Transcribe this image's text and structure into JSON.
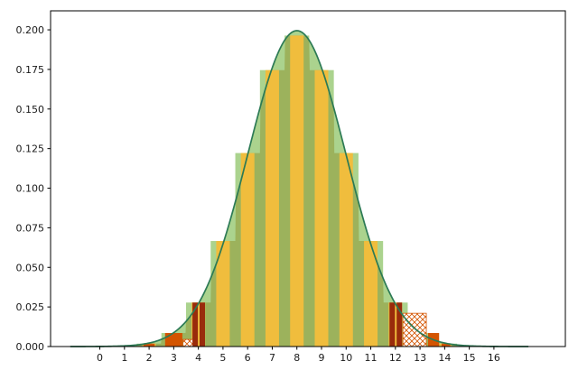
{
  "chart_data": {
    "type": "bar",
    "title": "",
    "xlabel": "",
    "ylabel": "",
    "grid": false,
    "legend": null,
    "xlim": [
      -2.0,
      18.9
    ],
    "ylim": [
      0,
      0.212
    ],
    "x_tick_values": [
      0,
      1,
      2,
      3,
      4,
      5,
      6,
      7,
      8,
      9,
      10,
      11,
      12,
      13,
      14,
      15,
      16
    ],
    "x_tick_labels": [
      "0",
      "1",
      "2",
      "3",
      "4",
      "5",
      "6",
      "7",
      "8",
      "9",
      "10",
      "11",
      "12",
      "13",
      "14",
      "15",
      "16"
    ],
    "y_tick_values": [
      0.0,
      0.025,
      0.05,
      0.075,
      0.1,
      0.125,
      0.15,
      0.175,
      0.2
    ],
    "y_tick_labels": [
      "0.000",
      "0.025",
      "0.050",
      "0.075",
      "0.100",
      "0.125",
      "0.150",
      "0.175",
      "0.200"
    ],
    "bars": {
      "name": "binomial-pmf-n16-p05",
      "categories": [
        0,
        1,
        2,
        3,
        4,
        5,
        6,
        7,
        8,
        9,
        10,
        11,
        12,
        13,
        14,
        15,
        16
      ],
      "values": [
        1.53e-05,
        0.000244,
        0.0018311,
        0.0085449,
        0.027771,
        0.0666504,
        0.1221924,
        0.1745605,
        0.1963806,
        0.1745605,
        0.1221924,
        0.0666504,
        0.027771,
        0.0085449,
        0.0018311,
        0.000244,
        1.53e-05
      ],
      "step_width": 1.0,
      "gold_width": 0.55
    },
    "curve": {
      "name": "normal-approximation",
      "mu": 8,
      "sigma": 2,
      "peak": 0.19947,
      "x_start": -1.2,
      "x_end": 17.4
    },
    "tail_bars": {
      "solid": [
        {
          "x": 2.0,
          "h": 0.0018311,
          "w": 0.45
        },
        {
          "x": 3.0,
          "h": 0.0085449,
          "w": 0.7
        },
        {
          "x": 13.55,
          "h": 0.0085449,
          "w": 0.45
        },
        {
          "x": 14.05,
          "h": 0.0018311,
          "w": 0.35
        }
      ],
      "dark": [
        {
          "x": 3.87,
          "h": 0.027771,
          "w": 0.22
        },
        {
          "x": 4.16,
          "h": 0.027771,
          "w": 0.22
        },
        {
          "x": 11.87,
          "h": 0.027771,
          "w": 0.22
        },
        {
          "x": 12.16,
          "h": 0.027771,
          "w": 0.22
        }
      ],
      "hatched": [
        {
          "x": 3.6,
          "h": 0.0045,
          "w": 0.45
        },
        {
          "x": 12.78,
          "h": 0.021,
          "w": 0.95
        }
      ]
    },
    "colors": {
      "green_light": "#abd38e",
      "green_dark": "#9cb25c",
      "gold": "#f0bd3d",
      "curve": "#2c7a55",
      "orange_red": "#d35400",
      "dark_red": "#992b0b",
      "axis": "#000000",
      "tick_text": "#1a1a1a",
      "background": "#ffffff"
    }
  }
}
